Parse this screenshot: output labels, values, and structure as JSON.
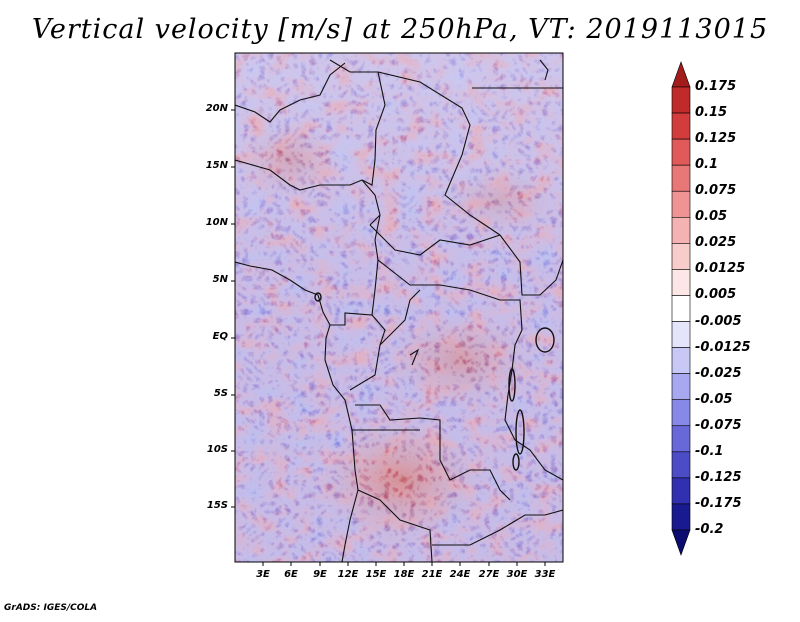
{
  "title": "Vertical velocity [m/s] at 250hPa, VT: 2019113015",
  "footer": "GrADS: IGES/COLA",
  "map": {
    "lat_range": [
      -20,
      25
    ],
    "lon_range": [
      0,
      35
    ],
    "lat_ticks": [
      "20N",
      "15N",
      "10N",
      "5N",
      "EQ",
      "5S",
      "10S",
      "15S"
    ],
    "lon_ticks": [
      "3E",
      "6E",
      "9E",
      "12E",
      "15E",
      "18E",
      "21E",
      "24E",
      "27E",
      "30E",
      "33E"
    ]
  },
  "colorbar": {
    "labels": [
      "0.175",
      "0.15",
      "0.125",
      "0.1",
      "0.075",
      "0.05",
      "0.025",
      "0.0125",
      "0.005",
      "-0.005",
      "-0.0125",
      "-0.025",
      "-0.05",
      "-0.075",
      "-0.1",
      "-0.125",
      "-0.175",
      "-0.2"
    ],
    "colors": [
      "#a31c1c",
      "#c02a2a",
      "#d23c3c",
      "#e05a5a",
      "#e87878",
      "#ef9494",
      "#f5b2b2",
      "#f9cccc",
      "#fce6e6",
      "#ffffff",
      "#e4e4fb",
      "#c8c8f6",
      "#a8a8f0",
      "#8888e6",
      "#6868d8",
      "#4c4cc6",
      "#3030b0",
      "#1a1a90",
      "#0c0c70"
    ]
  }
}
